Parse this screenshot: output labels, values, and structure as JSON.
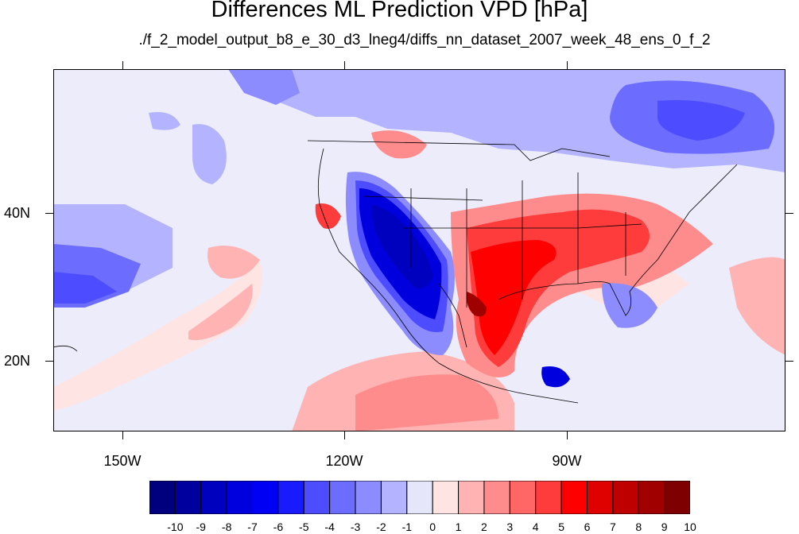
{
  "title": "Differences ML Prediction VPD [hPa]",
  "subtitle": "./f_2_model_output_b8_e_30_d3_lneg4/diffs_nn_dataset_2007_week_48_ens_0_f_2",
  "lat_labels": [
    "40N",
    "20N"
  ],
  "lon_labels": [
    "150W",
    "120W",
    "90W"
  ],
  "colorbar": {
    "labels": [
      "-10",
      "-9",
      "-8",
      "-7",
      "-6",
      "-5",
      "-4",
      "-3",
      "-2",
      "-1",
      "0",
      "1",
      "2",
      "3",
      "4",
      "5",
      "6",
      "7",
      "8",
      "9",
      "10"
    ],
    "colors": [
      "#00007f",
      "#00009f",
      "#0000bf",
      "#0000df",
      "#0000f5",
      "#1a1aff",
      "#4d4dff",
      "#6c6cff",
      "#8c8cff",
      "#b3b3ff",
      "#e6e6fa",
      "#ffe4e4",
      "#ffb3b3",
      "#ff8c8c",
      "#ff6666",
      "#ff3c3c",
      "#ff0000",
      "#df0000",
      "#bf0000",
      "#9f0000",
      "#7f0000"
    ]
  }
}
